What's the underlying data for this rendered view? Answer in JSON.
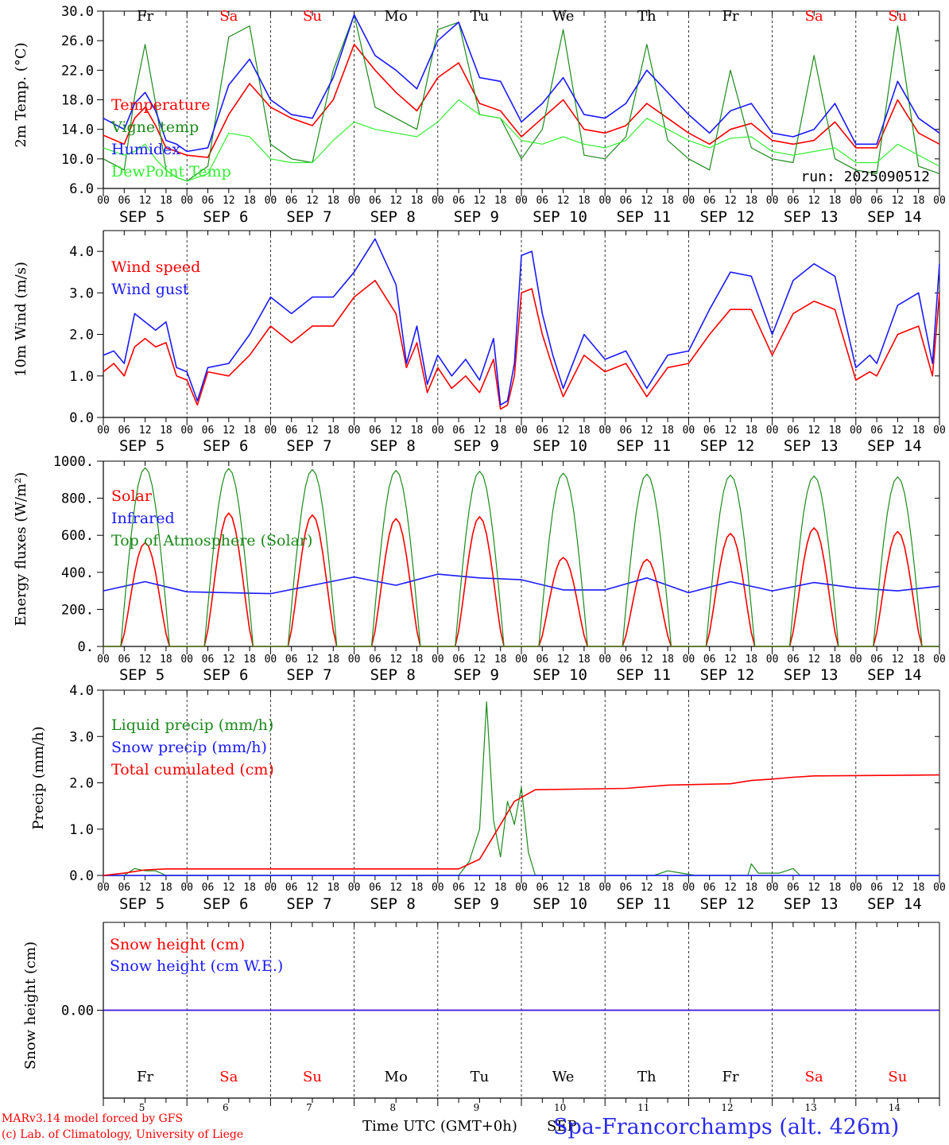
{
  "footer": {
    "model": "MARv3.14 model forced by GFS",
    "lab": "(c) Lab. of Climatology, University of Liege",
    "xlabel": "Time UTC (GMT+0h)",
    "xlabel_suffix": "SEP",
    "station": "Spa-Francorchamps (alt. 426m)"
  },
  "colors": {
    "red": "#ff0000",
    "blue": "#1a1aff",
    "darkgreen": "#1a8a1a",
    "lightgreen": "#33ee33",
    "weekend": "#ff0000",
    "weekday": "#000000"
  },
  "days": {
    "weekday_abbr": [
      "Fr",
      "Sa",
      "Su",
      "Mo",
      "Tu",
      "We",
      "Th",
      "Fr",
      "Sa",
      "Su"
    ],
    "weekend": [
      false,
      true,
      true,
      false,
      false,
      false,
      false,
      false,
      true,
      true
    ],
    "date_labels": [
      "SEP  5",
      "SEP  6",
      "SEP  7",
      "SEP  8",
      "SEP  9",
      "SEP 10",
      "SEP 11",
      "SEP 12",
      "SEP 13",
      "SEP 14"
    ],
    "day_numbers": [
      "5",
      "6",
      "7",
      "8",
      "9",
      "10",
      "11",
      "12",
      "13",
      "14"
    ],
    "hour_ticks": [
      "00",
      "06",
      "12",
      "18"
    ],
    "final_hour": "00"
  },
  "chart_data": [
    {
      "type": "line",
      "id": "temperature",
      "ylabel": "2m Temp. (°C)",
      "ylim": [
        6.0,
        30.0
      ],
      "yticks": [
        "6.0",
        "10.0",
        "14.0",
        "18.0",
        "22.0",
        "26.0",
        "30.0"
      ],
      "run_label": "run: 2025090512",
      "x_unit": "hours since SEP 5 00 UTC",
      "series": [
        {
          "name": "Temperature",
          "color": "red",
          "x": [
            0,
            6,
            9,
            12,
            15,
            18,
            21,
            24,
            30,
            36,
            42,
            48,
            54,
            60,
            66,
            72,
            78,
            84,
            90,
            96,
            102,
            108,
            114,
            120,
            126,
            132,
            138,
            144,
            150,
            156,
            162,
            168,
            174,
            180,
            186,
            192,
            198,
            204,
            210,
            216,
            222,
            228,
            234,
            240
          ],
          "y": [
            13.2,
            12.0,
            15.5,
            17.0,
            14.5,
            11.5,
            11.0,
            10.5,
            10.2,
            16.0,
            20.2,
            17.0,
            15.5,
            14.5,
            18.0,
            25.5,
            22.0,
            19.0,
            16.5,
            21.0,
            23.0,
            17.5,
            16.5,
            13.0,
            15.5,
            18.0,
            14.0,
            13.5,
            14.5,
            17.5,
            15.5,
            13.5,
            12.0,
            14.0,
            14.8,
            12.5,
            12.0,
            12.5,
            15.0,
            11.5,
            11.5,
            18.0,
            13.5,
            12.0
          ]
        },
        {
          "name": "Vigne temp",
          "color": "darkgreen",
          "x": [
            0,
            6,
            9,
            12,
            15,
            18,
            21,
            24,
            30,
            36,
            42,
            48,
            54,
            60,
            66,
            72,
            78,
            84,
            90,
            96,
            102,
            108,
            114,
            120,
            126,
            132,
            138,
            144,
            150,
            156,
            162,
            168,
            174,
            180,
            186,
            192,
            198,
            204,
            210,
            216,
            222,
            228,
            234,
            240
          ],
          "y": [
            10.0,
            8.5,
            18.5,
            25.5,
            17.5,
            8.5,
            7.5,
            7.0,
            9.0,
            26.5,
            28.0,
            12.0,
            10.0,
            9.5,
            22.0,
            29.5,
            17.0,
            15.5,
            14.0,
            27.5,
            28.5,
            16.0,
            15.5,
            10.0,
            14.0,
            27.5,
            10.5,
            10.0,
            13.0,
            25.5,
            12.5,
            10.0,
            8.5,
            22.0,
            11.5,
            10.0,
            9.5,
            24.0,
            10.0,
            8.5,
            8.0,
            28.0,
            9.0,
            8.0
          ]
        },
        {
          "name": "Humidex",
          "color": "blue",
          "x": [
            0,
            6,
            9,
            12,
            15,
            18,
            21,
            24,
            30,
            36,
            42,
            48,
            54,
            60,
            66,
            72,
            78,
            84,
            90,
            96,
            102,
            108,
            114,
            120,
            126,
            132,
            138,
            144,
            150,
            156,
            162,
            168,
            174,
            180,
            186,
            192,
            198,
            204,
            210,
            216,
            222,
            228,
            234,
            240
          ],
          "y": [
            15.5,
            14.0,
            17.5,
            19.0,
            16.5,
            12.5,
            12.0,
            11.0,
            11.5,
            20.0,
            23.5,
            18.0,
            16.0,
            15.5,
            21.0,
            29.5,
            24.0,
            22.0,
            19.5,
            26.0,
            28.5,
            21.0,
            20.5,
            15.0,
            17.5,
            21.0,
            16.0,
            15.5,
            17.5,
            22.0,
            19.0,
            16.0,
            13.5,
            16.5,
            17.5,
            13.5,
            13.0,
            14.0,
            17.5,
            12.0,
            12.0,
            20.5,
            15.5,
            13.5
          ]
        },
        {
          "name": "DewPoint Temp",
          "color": "lightgreen",
          "x": [
            0,
            6,
            9,
            12,
            15,
            18,
            21,
            24,
            30,
            36,
            42,
            48,
            54,
            60,
            66,
            72,
            78,
            84,
            90,
            96,
            102,
            108,
            114,
            120,
            126,
            132,
            138,
            144,
            150,
            156,
            162,
            168,
            174,
            180,
            186,
            192,
            198,
            204,
            210,
            216,
            222,
            228,
            234,
            240
          ],
          "y": [
            11.5,
            10.5,
            11.0,
            12.0,
            10.0,
            8.5,
            7.5,
            7.0,
            8.0,
            13.5,
            13.0,
            10.0,
            9.5,
            9.5,
            12.5,
            15.0,
            14.0,
            13.5,
            13.0,
            15.0,
            18.0,
            16.0,
            15.5,
            12.5,
            12.0,
            13.0,
            12.0,
            11.5,
            12.5,
            15.5,
            14.0,
            12.5,
            11.5,
            12.8,
            13.0,
            11.0,
            10.5,
            11.0,
            11.5,
            9.5,
            9.5,
            12.0,
            10.5,
            9.0
          ]
        }
      ]
    },
    {
      "type": "line",
      "id": "wind",
      "ylabel": "10m Wind (m/s)",
      "ylim": [
        0.0,
        4.5
      ],
      "yticks": [
        "0.0",
        "1.0",
        "2.0",
        "3.0",
        "4.0"
      ],
      "x_unit": "hours since SEP 5 00 UTC",
      "series": [
        {
          "name": "Wind speed",
          "color": "red",
          "x": [
            0,
            3,
            6,
            9,
            12,
            15,
            18,
            21,
            24,
            27,
            30,
            36,
            42,
            48,
            54,
            60,
            66,
            72,
            78,
            84,
            87,
            90,
            93,
            96,
            100,
            104,
            108,
            112,
            114,
            116,
            118,
            120,
            123,
            126,
            129,
            132,
            138,
            144,
            150,
            156,
            162,
            168,
            174,
            180,
            186,
            192,
            198,
            204,
            210,
            216,
            220,
            222,
            228,
            234,
            238,
            240
          ],
          "y": [
            1.1,
            1.3,
            1.0,
            1.7,
            1.9,
            1.7,
            1.8,
            1.0,
            0.9,
            0.3,
            1.1,
            1.0,
            1.5,
            2.2,
            1.8,
            2.2,
            2.2,
            2.9,
            3.3,
            2.5,
            1.2,
            1.8,
            0.6,
            1.2,
            0.7,
            1.0,
            0.6,
            1.4,
            0.2,
            0.3,
            1.0,
            3.0,
            3.1,
            2.0,
            1.2,
            0.5,
            1.5,
            1.1,
            1.3,
            0.5,
            1.2,
            1.3,
            2.0,
            2.6,
            2.6,
            1.5,
            2.5,
            2.8,
            2.6,
            0.9,
            1.1,
            1.0,
            2.0,
            2.2,
            1.0,
            3.0
          ]
        },
        {
          "name": "Wind gust",
          "color": "blue",
          "x": [
            0,
            3,
            6,
            9,
            12,
            15,
            18,
            21,
            24,
            27,
            30,
            36,
            42,
            48,
            54,
            60,
            66,
            72,
            78,
            84,
            87,
            90,
            93,
            96,
            100,
            104,
            108,
            112,
            114,
            116,
            118,
            120,
            123,
            126,
            129,
            132,
            138,
            144,
            150,
            156,
            162,
            168,
            174,
            180,
            186,
            192,
            198,
            204,
            210,
            216,
            220,
            222,
            228,
            234,
            238,
            240
          ],
          "y": [
            1.5,
            1.6,
            1.3,
            2.5,
            2.3,
            2.1,
            2.3,
            1.2,
            1.1,
            0.4,
            1.2,
            1.3,
            2.0,
            2.9,
            2.5,
            2.9,
            2.9,
            3.5,
            4.3,
            3.2,
            1.3,
            2.2,
            0.8,
            1.5,
            1.0,
            1.4,
            0.9,
            1.9,
            0.3,
            0.4,
            1.3,
            3.9,
            4.0,
            2.5,
            1.5,
            0.7,
            2.0,
            1.4,
            1.6,
            0.7,
            1.5,
            1.6,
            2.6,
            3.5,
            3.4,
            2.0,
            3.3,
            3.7,
            3.4,
            1.2,
            1.5,
            1.3,
            2.7,
            3.0,
            1.3,
            3.7
          ]
        }
      ]
    },
    {
      "type": "line",
      "id": "energy",
      "ylabel": "Energy fluxes (W/m²)",
      "ylim": [
        0,
        1000
      ],
      "yticks": [
        "0.",
        "200.",
        "400.",
        "600.",
        "800.",
        "1000."
      ],
      "x_unit": "hours since SEP 5 00 UTC",
      "series": [
        {
          "name": "Solar",
          "color": "red",
          "peak_hour": 12,
          "daily_peaks": [
            560,
            720,
            710,
            690,
            700,
            480,
            470,
            610,
            640,
            620
          ]
        },
        {
          "name": "Infrared",
          "color": "blue",
          "x": [
            0,
            12,
            24,
            36,
            48,
            60,
            72,
            84,
            96,
            108,
            120,
            132,
            144,
            156,
            168,
            180,
            192,
            204,
            216,
            228,
            240
          ],
          "y": [
            300,
            350,
            295,
            290,
            285,
            330,
            375,
            330,
            390,
            370,
            360,
            305,
            305,
            370,
            290,
            350,
            300,
            345,
            315,
            300,
            325
          ]
        },
        {
          "name": "Top of Atmosphere (Solar)",
          "color": "darkgreen",
          "peak_hour": 11,
          "daily_peaks": [
            965,
            960,
            955,
            950,
            945,
            935,
            930,
            925,
            920,
            915
          ]
        }
      ]
    },
    {
      "type": "line",
      "id": "precip",
      "ylabel": "Precip (mm/h)",
      "ylim": [
        0.0,
        4.0
      ],
      "yticks": [
        "0.0",
        "1.0",
        "2.0",
        "3.0",
        "4.0"
      ],
      "x_unit": "hours since SEP 5 00 UTC",
      "series": [
        {
          "name": "Liquid precip (mm/h)",
          "color": "darkgreen",
          "x": [
            0,
            6,
            9,
            12,
            15,
            18,
            102,
            105,
            108,
            110,
            112,
            114,
            116,
            118,
            120,
            122,
            124,
            130,
            132,
            158,
            162,
            166,
            170,
            185,
            186,
            188,
            194,
            198,
            200,
            240
          ],
          "y": [
            0.0,
            0.0,
            0.15,
            0.1,
            0.1,
            0.0,
            0.0,
            0.3,
            1.0,
            3.75,
            1.2,
            0.4,
            1.6,
            1.1,
            1.9,
            0.5,
            0.0,
            0.0,
            0.0,
            0.0,
            0.1,
            0.05,
            0.0,
            0.0,
            0.25,
            0.05,
            0.05,
            0.15,
            0.0,
            0.0
          ]
        },
        {
          "name": "Snow precip (mm/h)",
          "color": "blue",
          "x": [
            0,
            240
          ],
          "y": [
            0.0,
            0.0
          ]
        },
        {
          "name": "Total cumulated (cm)",
          "color": "red",
          "x": [
            0,
            6,
            12,
            18,
            102,
            108,
            114,
            118,
            124,
            150,
            162,
            168,
            180,
            186,
            192,
            198,
            204,
            240
          ],
          "y": [
            0.0,
            0.05,
            0.12,
            0.14,
            0.14,
            0.35,
            1.1,
            1.6,
            1.85,
            1.88,
            1.95,
            1.96,
            1.98,
            2.05,
            2.08,
            2.12,
            2.15,
            2.17
          ]
        }
      ]
    },
    {
      "type": "line",
      "id": "snow",
      "ylabel": "Snow height (cm)",
      "ylim": [
        -1.0,
        1.0
      ],
      "yticks": [
        "0.00"
      ],
      "x_unit": "hours since SEP 5 00 UTC",
      "series": [
        {
          "name": "Snow height (cm)",
          "color": "red",
          "x": [
            0,
            240
          ],
          "y": [
            0.0,
            0.0
          ]
        },
        {
          "name": "Snow height (cm W.E.)",
          "color": "blue",
          "x": [
            0,
            240
          ],
          "y": [
            0.0,
            0.0
          ]
        }
      ]
    }
  ]
}
